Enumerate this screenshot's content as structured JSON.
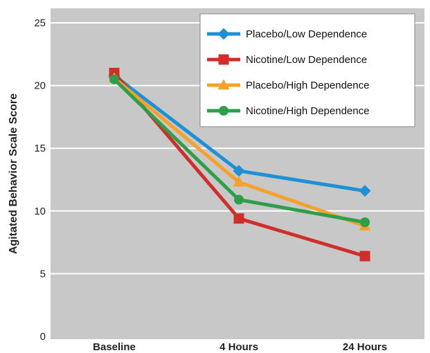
{
  "chart_data": {
    "type": "line",
    "title": "",
    "xlabel": "",
    "ylabel": "Agitated Behavior Scale Score",
    "categories": [
      "Baseline",
      "4 Hours",
      "24 Hours"
    ],
    "ylim": [
      0,
      25
    ],
    "yticks": [
      0,
      5,
      10,
      15,
      20,
      25
    ],
    "grid": "horizontal",
    "legend_position": "top-right",
    "series": [
      {
        "name": "Placebo/Low Dependence",
        "values": [
          20.8,
          13.2,
          11.6
        ],
        "color": "#1f8fd6",
        "marker": "diamond"
      },
      {
        "name": "Nicotine/Low Dependence",
        "values": [
          21.0,
          9.4,
          6.4
        ],
        "color": "#cf2f2a",
        "marker": "square"
      },
      {
        "name": "Placebo/High Dependence",
        "values": [
          20.6,
          12.3,
          8.8
        ],
        "color": "#f5a12c",
        "marker": "triangle"
      },
      {
        "name": "Nicotine/High Dependence",
        "values": [
          20.5,
          10.9,
          9.1
        ],
        "color": "#2e9e4a",
        "marker": "circle"
      }
    ]
  },
  "colors": {
    "plot_background": "#c8c8c8",
    "gridline": "#ffffff"
  }
}
